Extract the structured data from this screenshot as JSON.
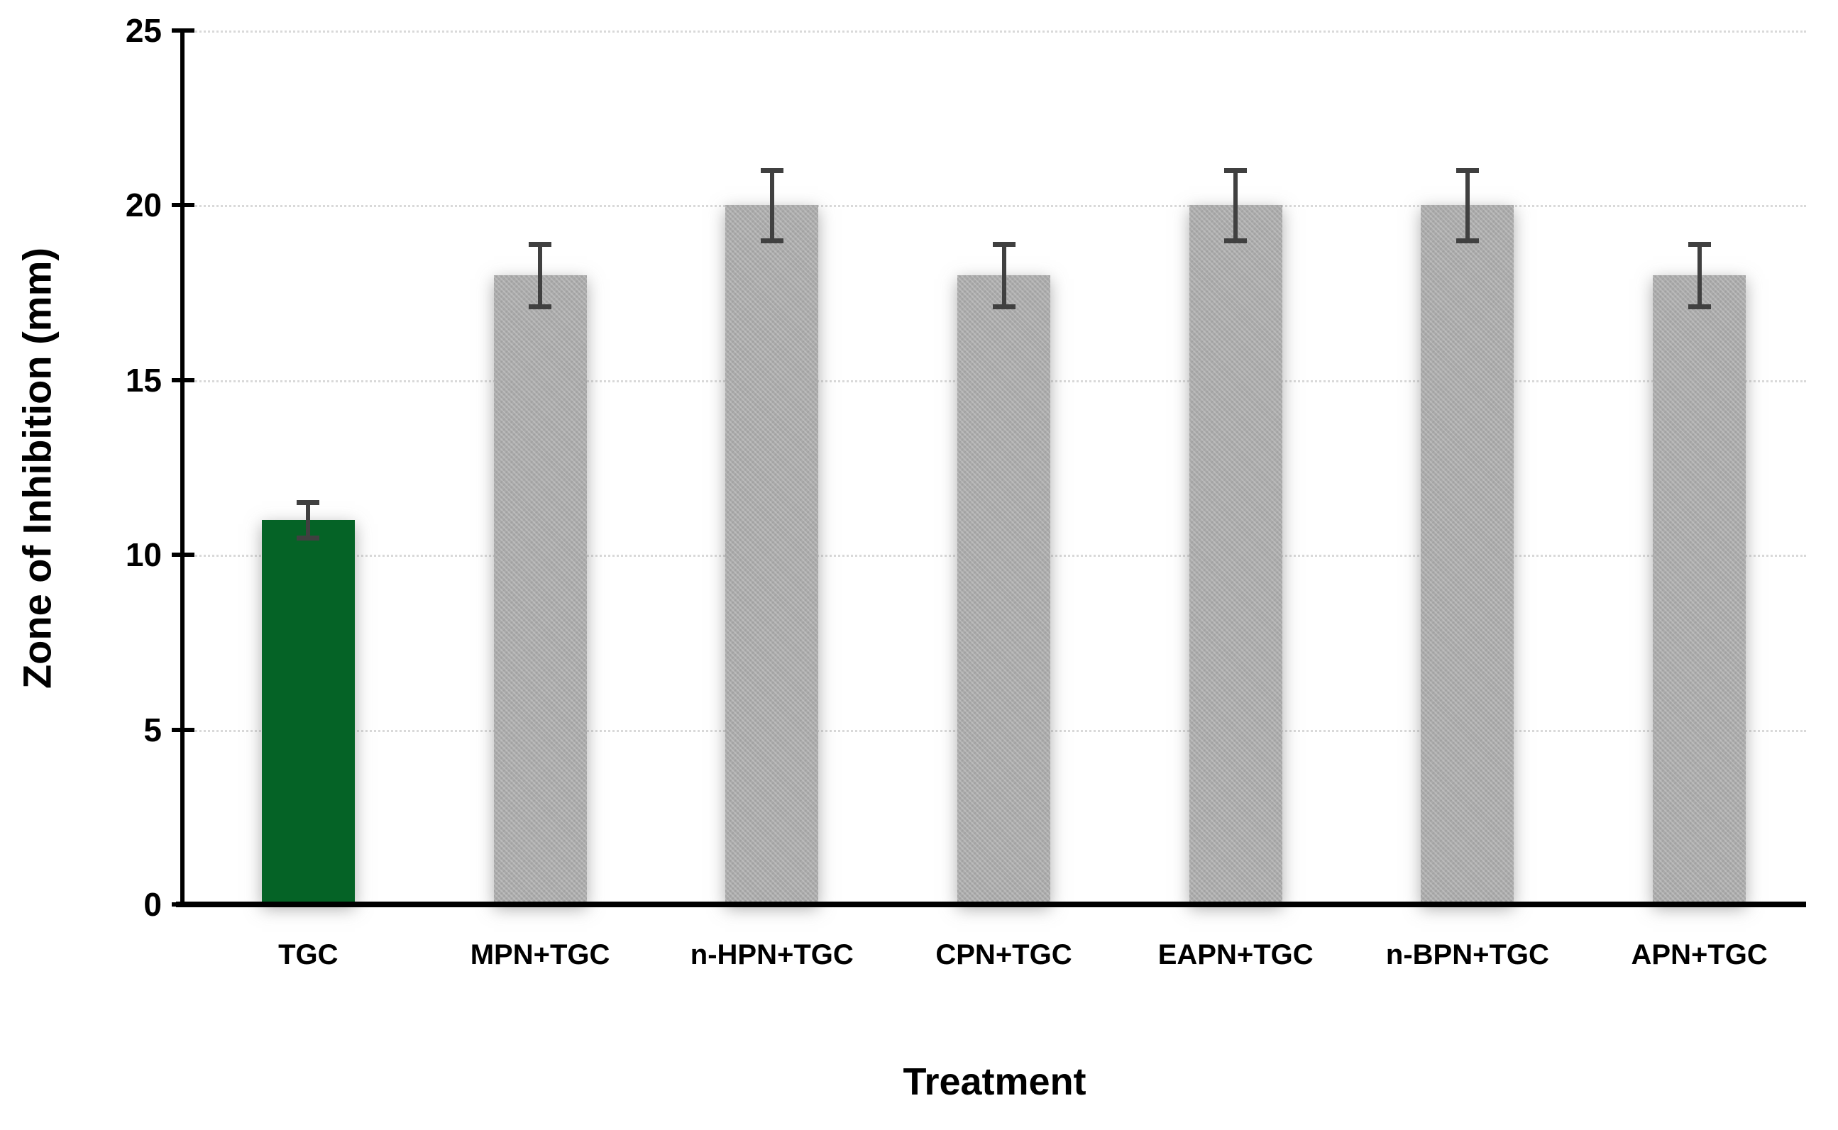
{
  "chart_data": {
    "type": "bar",
    "title": "",
    "xlabel": "Treatment",
    "ylabel": "Zone of Inhibition (mm)",
    "categories": [
      "TGC",
      "MPN+TGC",
      "n-HPN+TGC",
      "CPN+TGC",
      "EAPN+TGC",
      "n-BPN+TGC",
      "APN+TGC"
    ],
    "values": [
      11,
      18,
      20,
      18,
      20,
      20,
      18
    ],
    "errors": [
      0.5,
      0.9,
      1.0,
      0.9,
      1.0,
      1.0,
      0.9
    ],
    "bar_colors": [
      "#056326",
      "#ababab",
      "#ababab",
      "#ababab",
      "#ababab",
      "#ababab",
      "#ababab"
    ],
    "ylim": [
      0,
      25
    ],
    "yticks": [
      0,
      5,
      10,
      15,
      20,
      25
    ],
    "grid": "horizontal-dotted",
    "legend": "none"
  },
  "colors": {
    "highlight_bar": "#056326",
    "default_bar": "#ababab",
    "error_bar": "#404040",
    "gridline": "#d9d9d9",
    "axis": "#000000",
    "background": "#ffffff"
  }
}
